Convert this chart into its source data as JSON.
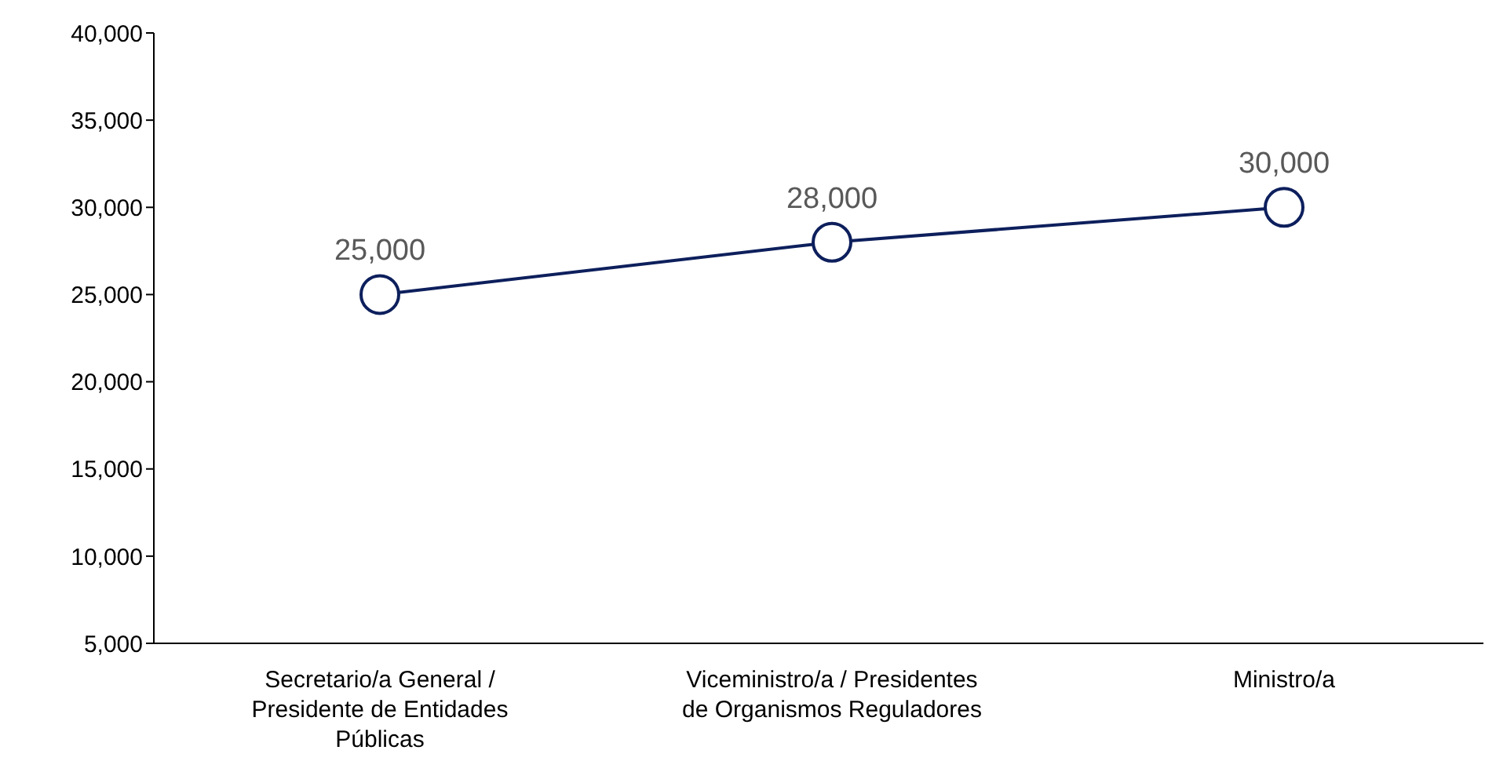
{
  "chart_data": {
    "type": "line",
    "categories": [
      "Secretario/a General / Presidente de Entidades Públicas",
      "Viceministro/a / Presidentes de Organismos Reguladores",
      "Ministro/a"
    ],
    "series": [
      {
        "color": "#0d1f5c",
        "values": [
          25000,
          28000,
          30000
        ],
        "value_labels": [
          "25,000",
          "28,000",
          "30,000"
        ]
      }
    ],
    "ylim": [
      5000,
      40000
    ],
    "yticks": [
      {
        "value": 5000,
        "label": "5,000"
      },
      {
        "value": 10000,
        "label": "10,000"
      },
      {
        "value": 15000,
        "label": "15,000"
      },
      {
        "value": 20000,
        "label": "20,000"
      },
      {
        "value": 25000,
        "label": "25,000"
      },
      {
        "value": 30000,
        "label": "30,000"
      },
      {
        "value": 35000,
        "label": "35,000"
      },
      {
        "value": 40000,
        "label": "40,000"
      }
    ],
    "grid": false,
    "legend": false,
    "marker": "circle",
    "line_style": "solid"
  }
}
